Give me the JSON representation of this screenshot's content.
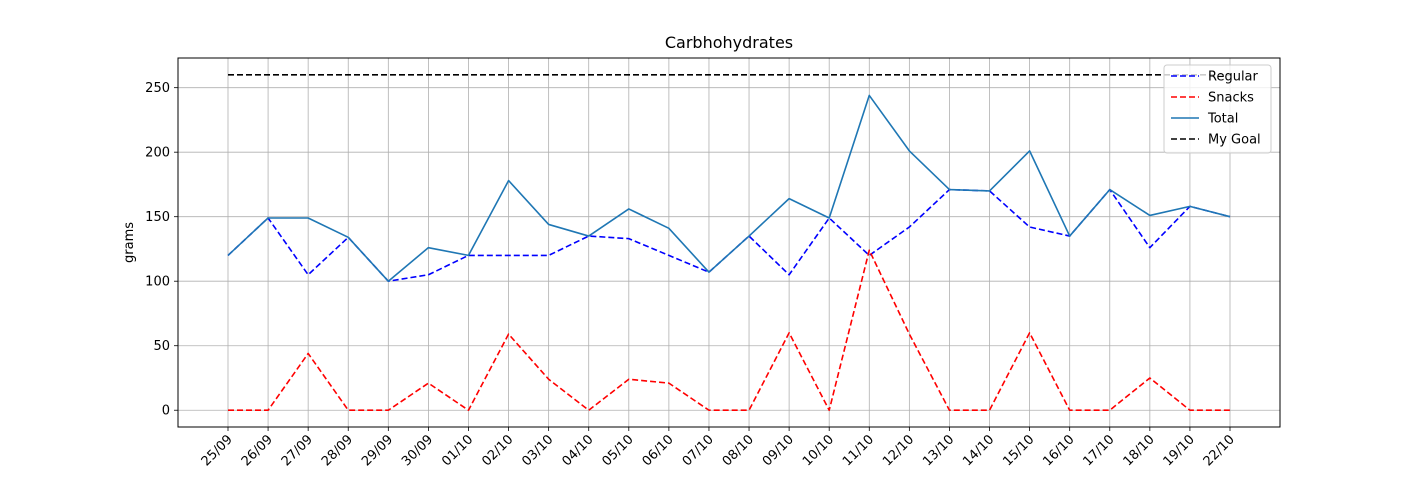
{
  "chart_data": {
    "type": "line",
    "title": "Carbhohydrates",
    "xlabel": "",
    "ylabel": "grams",
    "categories": [
      "25/09",
      "26/09",
      "27/09",
      "28/09",
      "29/09",
      "30/09",
      "01/10",
      "02/10",
      "03/10",
      "04/10",
      "05/10",
      "06/10",
      "07/10",
      "08/10",
      "09/10",
      "10/10",
      "11/10",
      "12/10",
      "13/10",
      "14/10",
      "15/10",
      "16/10",
      "17/10",
      "18/10",
      "19/10",
      "22/10"
    ],
    "ylim": [
      -13,
      273
    ],
    "yticks": [
      0,
      50,
      100,
      150,
      200,
      250
    ],
    "grid": true,
    "legend_position": "top-right",
    "series": [
      {
        "name": "Regular",
        "color": "#0000ff",
        "style": "dashed",
        "values": [
          120,
          149,
          105,
          134,
          100,
          105,
          120,
          120,
          120,
          135,
          133,
          120,
          107,
          135,
          105,
          149,
          120,
          142,
          171,
          170,
          142,
          135,
          171,
          126,
          158,
          150
        ]
      },
      {
        "name": "Snacks",
        "color": "#ff0000",
        "style": "dashed",
        "values": [
          0,
          0,
          44,
          0,
          0,
          21,
          0,
          59,
          24,
          0,
          24,
          21,
          0,
          0,
          60,
          0,
          124,
          59,
          0,
          0,
          60,
          0,
          0,
          25,
          0,
          0
        ]
      },
      {
        "name": "Total",
        "color": "#1f77b4",
        "style": "solid",
        "values": [
          120,
          149,
          149,
          134,
          100,
          126,
          120,
          178,
          144,
          135,
          156,
          141,
          107,
          135,
          164,
          149,
          244,
          201,
          171,
          170,
          201,
          135,
          171,
          151,
          158,
          150
        ]
      },
      {
        "name": "My Goal",
        "color": "#000000",
        "style": "dashed",
        "values": [
          260,
          260,
          260,
          260,
          260,
          260,
          260,
          260,
          260,
          260,
          260,
          260,
          260,
          260,
          260,
          260,
          260,
          260,
          260,
          260,
          260,
          260,
          260,
          260,
          260,
          260
        ]
      }
    ]
  }
}
